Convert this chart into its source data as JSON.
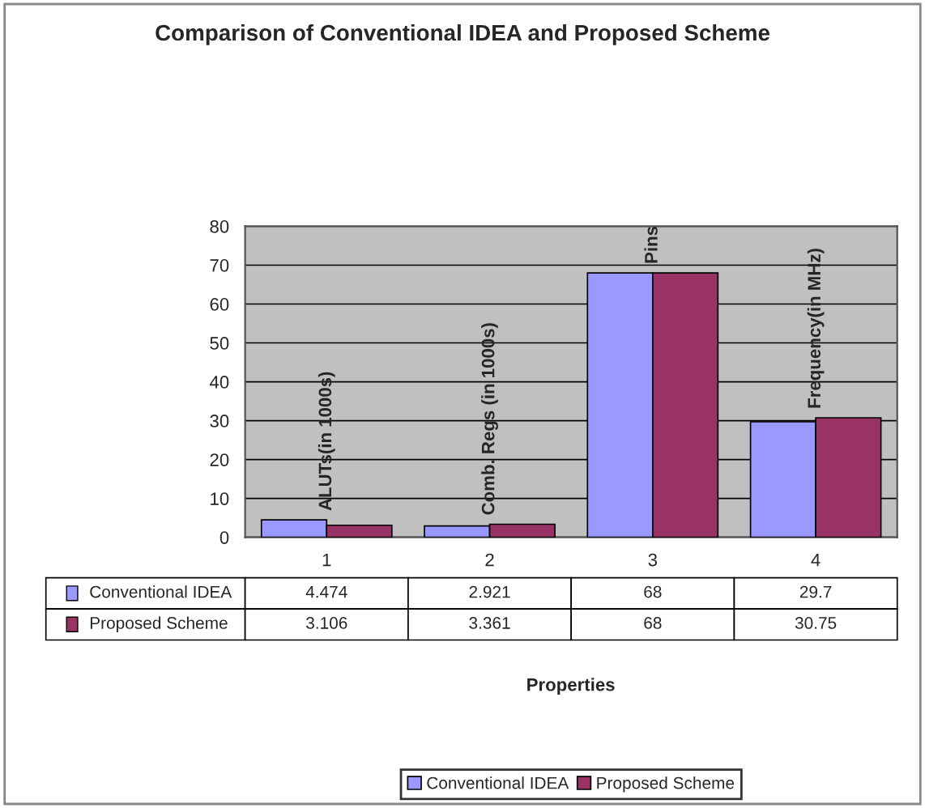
{
  "chart_data": {
    "type": "bar",
    "title": "Comparison of Conventional IDEA and Proposed Scheme",
    "categories": [
      "1",
      "2",
      "3",
      "4"
    ],
    "series": [
      {
        "name": "Conventional IDEA",
        "color": "#9999ff",
        "values": [
          4.474,
          2.921,
          68,
          29.7
        ]
      },
      {
        "name": "Proposed Scheme",
        "color": "#993366",
        "values": [
          3.106,
          3.361,
          68,
          30.75
        ]
      }
    ],
    "ylim": [
      0,
      80
    ],
    "yticks": [
      0,
      10,
      20,
      30,
      40,
      50,
      60,
      70,
      80
    ],
    "grid": "y",
    "legend": "bottom",
    "data_labels": true,
    "annotations": [
      {
        "text": "ALUTs(in 1000s)",
        "x": "1",
        "y": 4.474
      },
      {
        "text": "Comb. Regs (in 1000s)",
        "x": "2",
        "y": 3.361
      },
      {
        "text": "Pins",
        "x": "3",
        "y": 68
      },
      {
        "text": "Frequency(in MHz)",
        "x": "4",
        "y": 30.75
      },
      "Properties"
    ]
  }
}
